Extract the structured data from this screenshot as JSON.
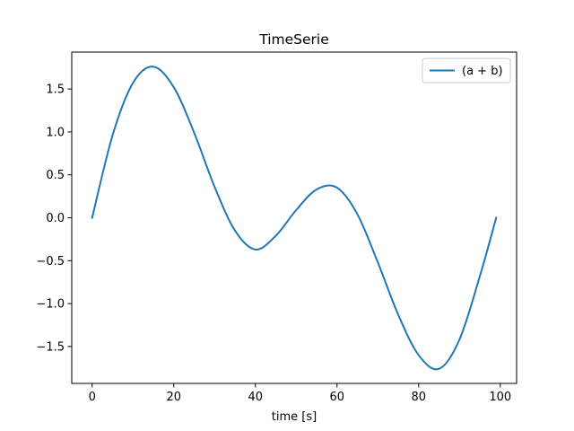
{
  "chart_data": {
    "type": "line",
    "title": "TimeSerie",
    "xlabel": "time [s]",
    "ylabel": "",
    "xlim": [
      -5,
      104
    ],
    "ylim": [
      -1.93,
      1.93
    ],
    "xticks": [
      0,
      20,
      40,
      60,
      80,
      100
    ],
    "xtick_labels": [
      "0",
      "20",
      "40",
      "60",
      "80",
      "100"
    ],
    "yticks": [
      -1.5,
      -1.0,
      -0.5,
      0.0,
      0.5,
      1.0,
      1.5
    ],
    "ytick_labels": [
      "−1.5",
      "−1.0",
      "−0.5",
      "0.0",
      "0.5",
      "1.0",
      "1.5"
    ],
    "grid": false,
    "legend_position": "top-right",
    "series": [
      {
        "name": "(a + b)",
        "color": "#1f77b4",
        "x": [
          0,
          5,
          10,
          15,
          20,
          25,
          30,
          35,
          40,
          45,
          50,
          55,
          60,
          65,
          70,
          75,
          80,
          85,
          90,
          95,
          99
        ],
        "y": [
          0.0,
          0.96,
          1.57,
          1.76,
          1.52,
          0.99,
          0.36,
          -0.15,
          -0.37,
          -0.21,
          0.09,
          0.33,
          0.35,
          0.04,
          -0.52,
          -1.13,
          -1.6,
          -1.76,
          -1.42,
          -0.68,
          0.0
        ]
      }
    ]
  }
}
